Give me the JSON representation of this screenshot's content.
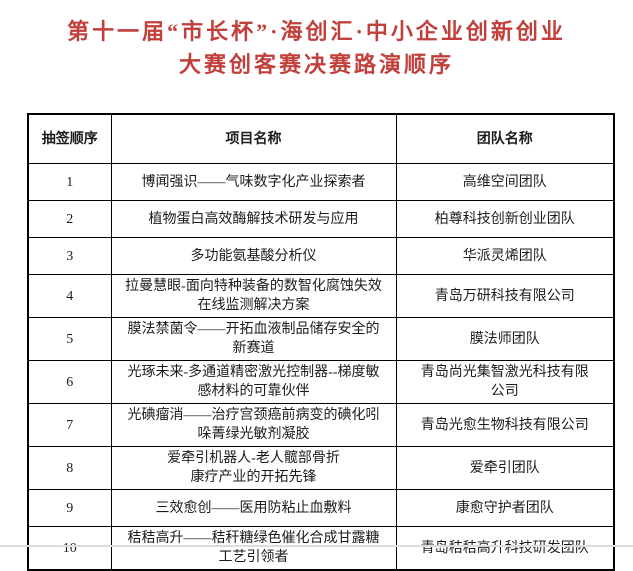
{
  "title": {
    "line1": "第十一届“市长杯”·海创汇·中小企业创新创业",
    "line2": "大赛创客赛决赛路演顺序",
    "color": "#c2403c"
  },
  "table": {
    "headers": [
      "抽签顺序",
      "项目名称",
      "团队名称"
    ],
    "rows": [
      {
        "order": "1",
        "project": "博闻强识——气味数字化产业探索者",
        "team": "高维空间团队"
      },
      {
        "order": "2",
        "project": "植物蛋白高效酶解技术研发与应用",
        "team": "柏尊科技创新创业团队"
      },
      {
        "order": "3",
        "project": "多功能氨基酸分析仪",
        "team": "华派灵烯团队"
      },
      {
        "order": "4",
        "project": "拉曼慧眼-面向特种装备的数智化腐蚀失效\n在线监测解决方案",
        "team": "青岛万研科技有限公司"
      },
      {
        "order": "5",
        "project": "膜法禁菌令——开拓血液制品储存安全的\n新赛道",
        "team": "膜法师团队"
      },
      {
        "order": "6",
        "project": "光琢未来-多通道精密激光控制器--梯度敏\n感材料的可靠伙伴",
        "team": "青岛尚光集智激光科技有限\n公司"
      },
      {
        "order": "7",
        "project": "光碘瘤消——治疗宫颈癌前病变的碘化吲\n哚菁绿光敏剂凝胶",
        "team": "青岛光愈生物科技有限公司"
      },
      {
        "order": "8",
        "project": "爱牵引机器人-老人髋部骨折\n康疗产业的开拓先锋",
        "team": "爱牵引团队"
      },
      {
        "order": "9",
        "project": "三效愈创——医用防粘止血敷料",
        "team": "康愈守护者团队"
      },
      {
        "order": "10",
        "project": "秸秸高升——秸秆糖绿色催化合成甘露糖\n工艺引领者",
        "team": "青岛秸秸高升科技研发团队"
      }
    ],
    "border_color": "#000000"
  }
}
